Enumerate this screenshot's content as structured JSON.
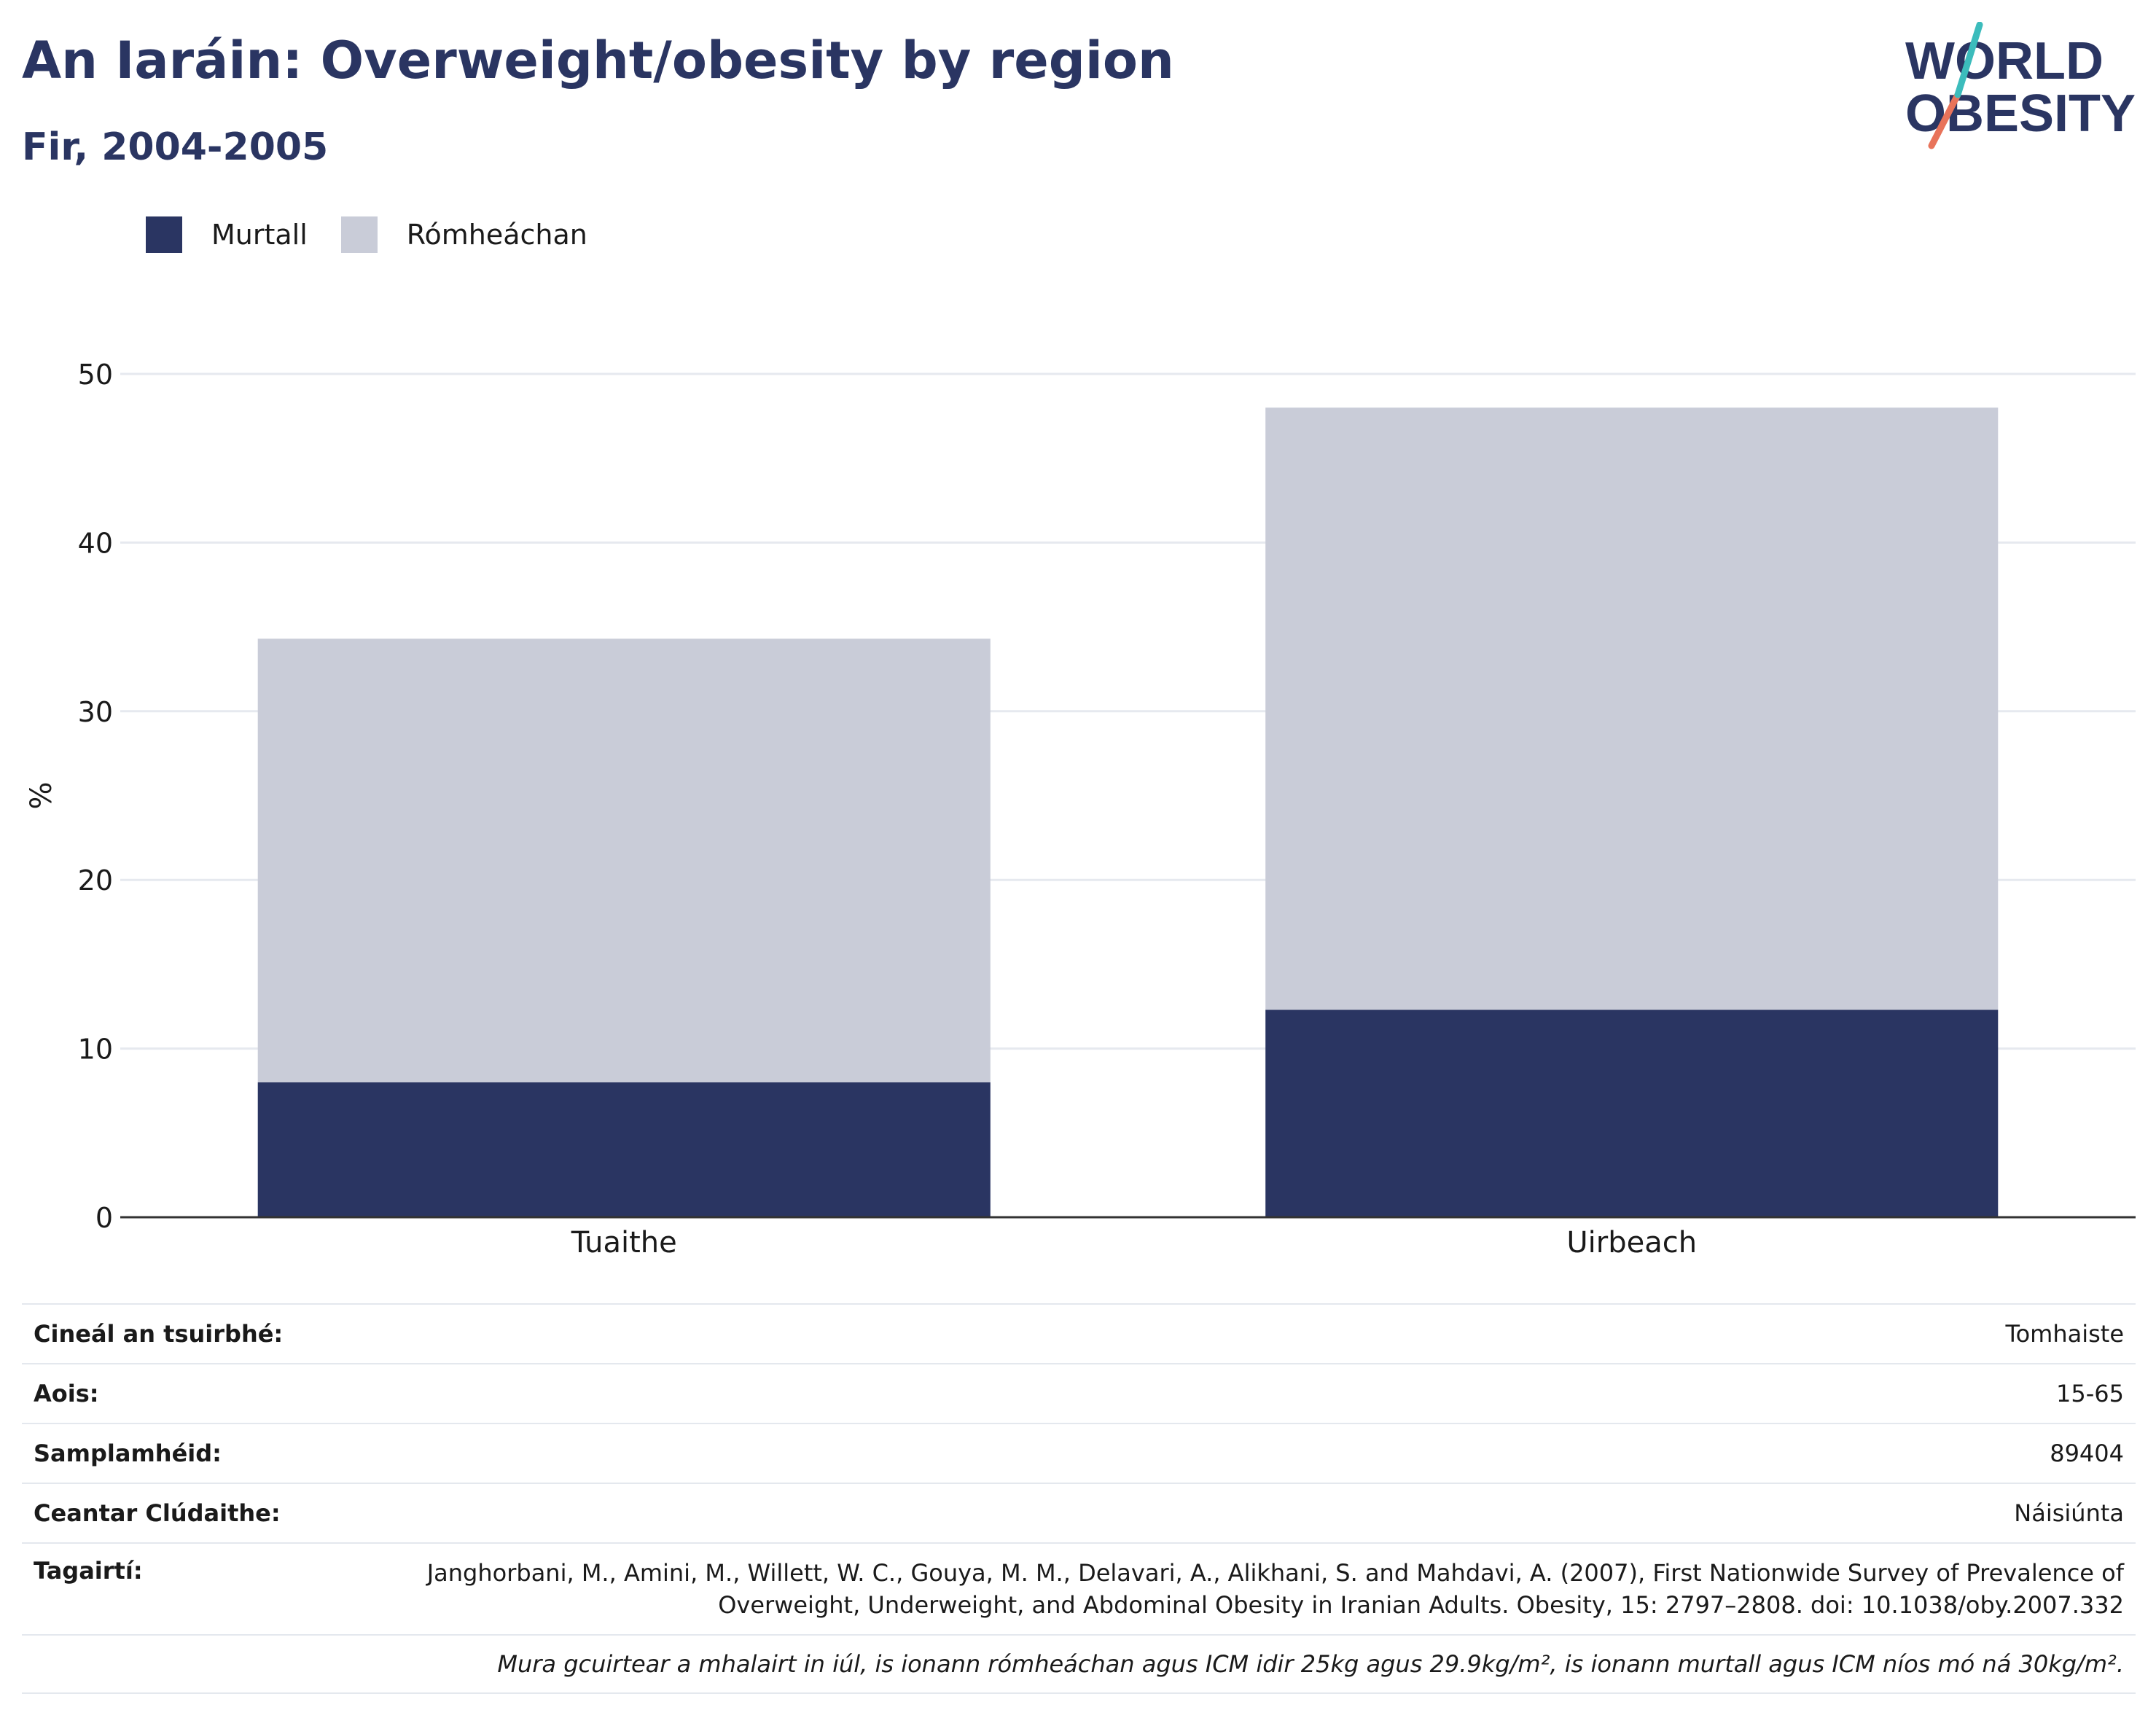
{
  "header": {
    "title": "An Iaráin: Overweight/obesity by region",
    "subtitle": "Fir, 2004-2005",
    "logo_line1": "WORLD",
    "logo_line2": "OBESITY"
  },
  "legend": {
    "items": [
      {
        "label": "Murtall",
        "color": "#2a3562"
      },
      {
        "label": "Rómheáchan",
        "color": "#c9ccd8"
      }
    ]
  },
  "chart_data": {
    "type": "bar",
    "stacked": true,
    "categories": [
      "Tuaithe",
      "Uirbeach"
    ],
    "series": [
      {
        "name": "Murtall",
        "values": [
          8.0,
          12.3
        ],
        "color": "#2a3562"
      },
      {
        "name": "Rómheáchan",
        "values": [
          26.3,
          35.7
        ],
        "color": "#c9ccd8"
      }
    ],
    "ylabel": "%",
    "ylim": [
      0,
      50
    ],
    "yticks": [
      0,
      10,
      20,
      30,
      40,
      50
    ],
    "grid": true,
    "legend_position": "top-left"
  },
  "info": {
    "rows": [
      {
        "label": "Cineál an tsuirbhé:",
        "value": "Tomhaiste"
      },
      {
        "label": "Aois:",
        "value": "15-65"
      },
      {
        "label": "Samplamhéid:",
        "value": "89404"
      },
      {
        "label": "Ceantar Clúdaithe:",
        "value": "Náisiúnta"
      }
    ],
    "references_label": "Tagairtí:",
    "references": "Janghorbani, M., Amini, M., Willett, W. C., Gouya, M. M., Delavari, A., Alikhani, S. and Mahdavi, A. (2007), First Nationwide Survey of Prevalence of Overweight, Underweight, and Abdominal Obesity in Iranian Adults. Obesity, 15: 2797–2808. doi: 10.1038/oby.2007.332",
    "note": "Mura gcuirtear a mhalairt in iúl, is ionann rómheáchan agus ICM idir 25kg agus 29.9kg/m², is ionann murtall agus ICM níos mó ná 30kg/m²."
  }
}
